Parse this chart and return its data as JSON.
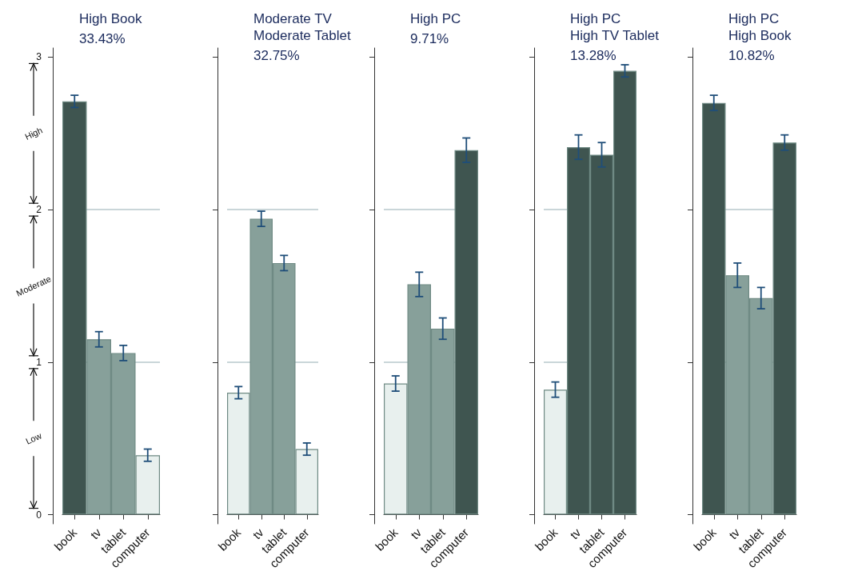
{
  "chart_data": [
    {
      "type": "bar",
      "title": "High Book",
      "subtitle": "33.43%",
      "categories": [
        "book",
        "tv",
        "tablet",
        "computer"
      ],
      "values": [
        2.71,
        1.15,
        1.06,
        0.39
      ],
      "errors": [
        0.04,
        0.05,
        0.05,
        0.04
      ],
      "colors": [
        "#3f5550",
        "#87a09a",
        "#87a09a",
        "#e8f0ee"
      ],
      "ylim": [
        -0.06,
        3.06
      ],
      "yticks": [
        0,
        1,
        2,
        3
      ],
      "ref_lines": [
        {
          "axis": "y",
          "value": 1,
          "color": "#b8c8cc"
        },
        {
          "axis": "y",
          "value": 2,
          "color": "#b8c8cc"
        }
      ],
      "annotations": [
        "High",
        "Moderate",
        "Low"
      ]
    },
    {
      "type": "bar",
      "title": "Moderate TV\nModerate Tablet",
      "subtitle": "32.75%",
      "categories": [
        "book",
        "tv",
        "tablet",
        "computer"
      ],
      "values": [
        0.8,
        1.94,
        1.65,
        0.43
      ],
      "errors": [
        0.04,
        0.05,
        0.05,
        0.04
      ],
      "colors": [
        "#e8f0ee",
        "#87a09a",
        "#87a09a",
        "#e8f0ee"
      ],
      "ylim": [
        -0.06,
        3.06
      ],
      "yticks": [
        0,
        1,
        2,
        3
      ],
      "tick_labels": "x",
      "ref_lines": [
        {
          "axis": "y",
          "value": 1,
          "color": "#b8c8cc"
        },
        {
          "axis": "y",
          "value": 2,
          "color": "#b8c8cc"
        }
      ]
    },
    {
      "type": "bar",
      "title": "High PC",
      "subtitle": "9.71%",
      "categories": [
        "book",
        "tv",
        "tablet",
        "computer"
      ],
      "values": [
        0.86,
        1.51,
        1.22,
        2.39
      ],
      "errors": [
        0.05,
        0.08,
        0.07,
        0.08
      ],
      "colors": [
        "#e8f0ee",
        "#87a09a",
        "#87a09a",
        "#3f5550"
      ],
      "ylim": [
        -0.06,
        3.06
      ],
      "yticks": [
        0,
        1,
        2,
        3
      ],
      "tick_labels": "x",
      "ref_lines": [
        {
          "axis": "y",
          "value": 1,
          "color": "#b8c8cc"
        },
        {
          "axis": "y",
          "value": 2,
          "color": "#b8c8cc"
        }
      ]
    },
    {
      "type": "bar",
      "title": "High PC\nHigh TV Tablet",
      "subtitle": "13.28%",
      "categories": [
        "book",
        "tv",
        "tablet",
        "computer"
      ],
      "values": [
        0.82,
        2.41,
        2.36,
        2.91
      ],
      "errors": [
        0.05,
        0.08,
        0.08,
        0.04
      ],
      "colors": [
        "#e8f0ee",
        "#3f5550",
        "#3f5550",
        "#3f5550"
      ],
      "ylim": [
        -0.06,
        3.06
      ],
      "yticks": [
        0,
        1,
        2,
        3
      ],
      "tick_labels": "x",
      "ref_lines": [
        {
          "axis": "y",
          "value": 1,
          "color": "#b8c8cc"
        },
        {
          "axis": "y",
          "value": 2,
          "color": "#b8c8cc"
        }
      ]
    },
    {
      "type": "bar",
      "title": "High PC\nHigh Book",
      "subtitle": "10.82%",
      "categories": [
        "book",
        "tv",
        "tablet",
        "computer"
      ],
      "values": [
        2.7,
        1.57,
        1.42,
        2.44
      ],
      "errors": [
        0.05,
        0.08,
        0.07,
        0.05
      ],
      "colors": [
        "#3f5550",
        "#87a09a",
        "#87a09a",
        "#3f5550"
      ],
      "ylim": [
        -0.06,
        3.06
      ],
      "yticks": [
        0,
        1,
        2,
        3
      ],
      "tick_labels": "x",
      "ref_lines": [
        {
          "axis": "y",
          "value": 1,
          "color": "#b8c8cc"
        },
        {
          "axis": "y",
          "value": 2,
          "color": "#b8c8cc"
        }
      ]
    }
  ]
}
